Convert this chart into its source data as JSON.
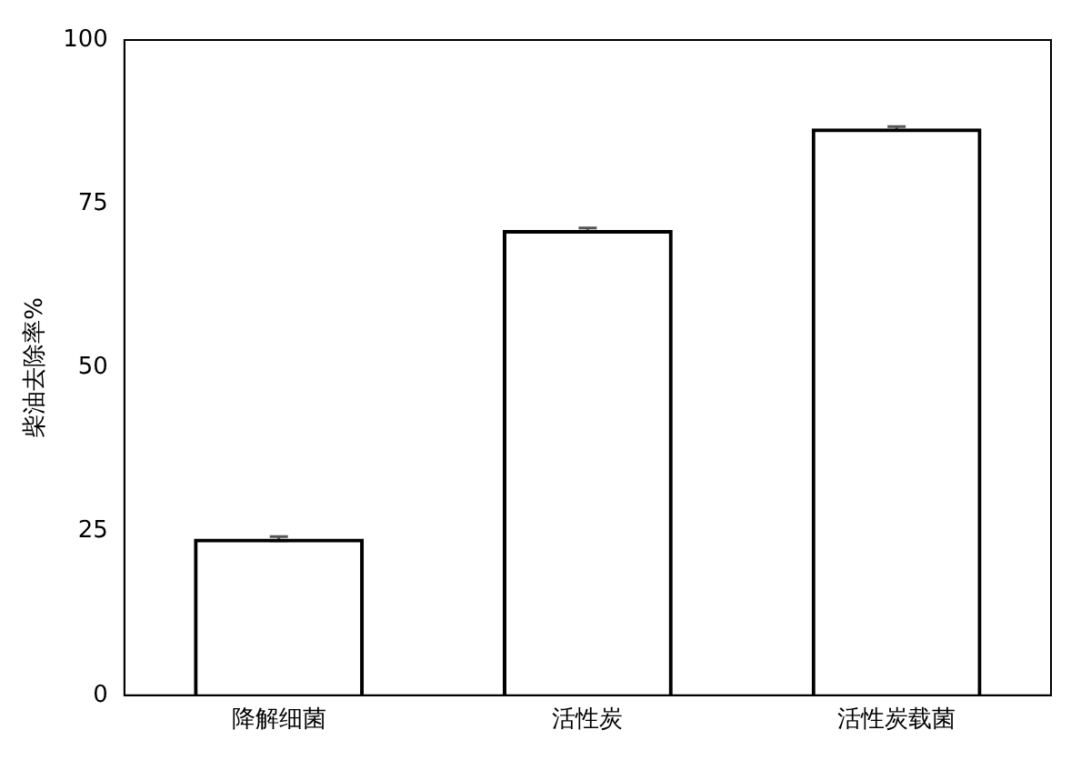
{
  "chart_data": {
    "type": "bar",
    "ylabel": "柴油去除率%",
    "categories": [
      "降解细菌",
      "活性炭",
      "活性炭载菌"
    ],
    "values": [
      23.9,
      71.0,
      86.5
    ],
    "errors": [
      0.3,
      0.3,
      0.3
    ],
    "color": "#000000",
    "ylim": [
      0,
      100
    ],
    "yticks": [
      0,
      25,
      50,
      75,
      100
    ],
    "grid": false,
    "legend": false
  }
}
